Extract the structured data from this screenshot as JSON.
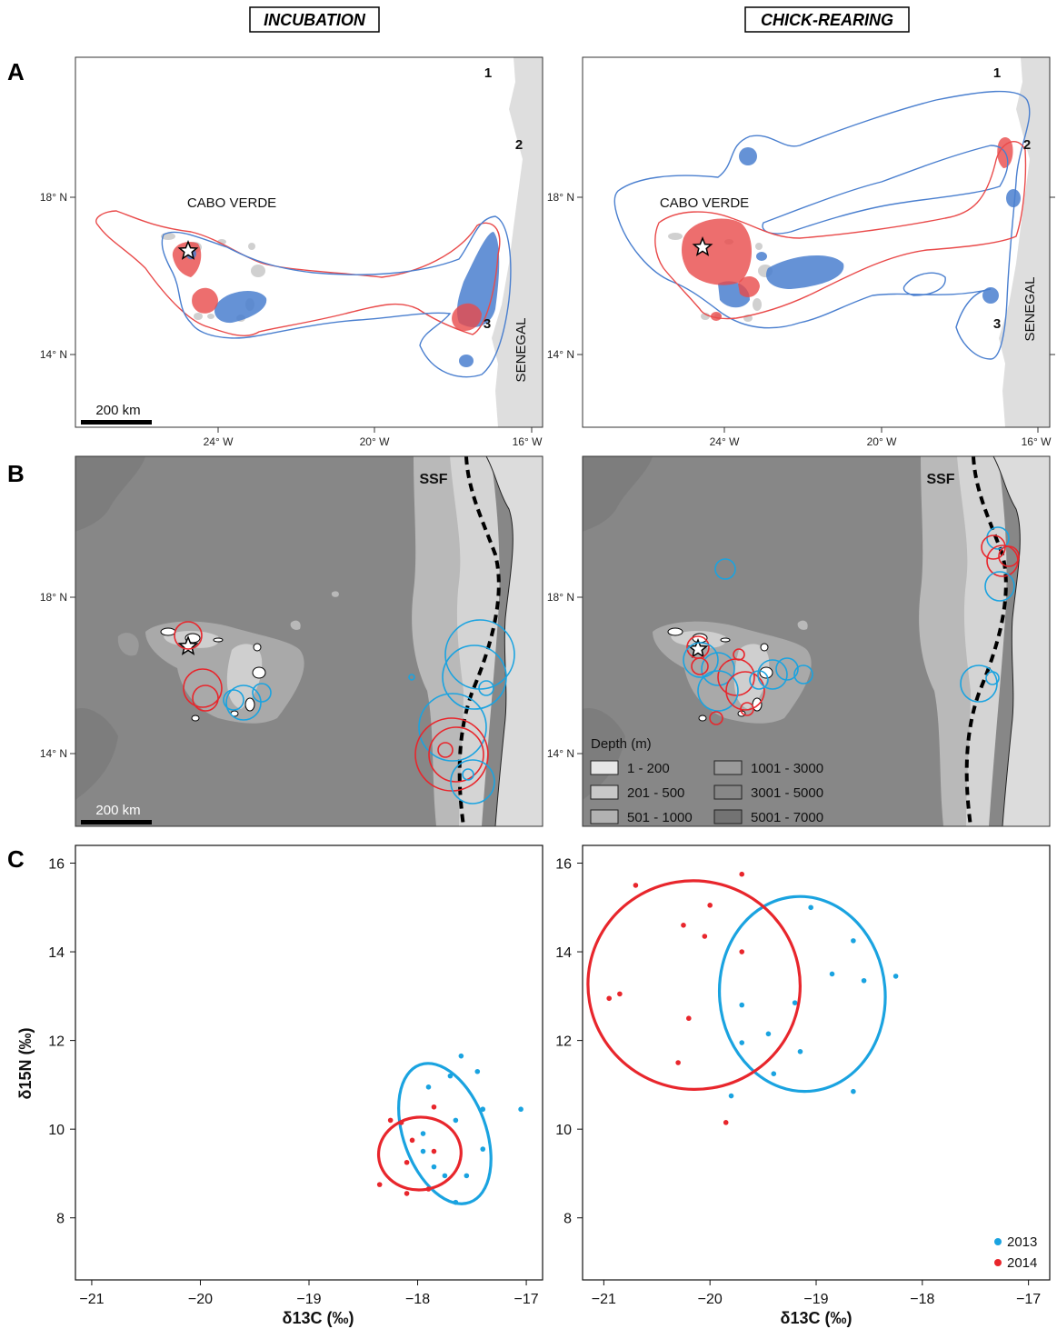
{
  "colors": {
    "y2013": "#1aa3e0",
    "y2014": "#e8262c",
    "ud_2013": "#4a7fcf",
    "ud_2014": "#e94a4a",
    "land": "#dedede",
    "ocean_deep": "#878787",
    "shelf": "#b9b9b9",
    "ssf_line": "#000000"
  },
  "headers": {
    "incubation": "INCUBATION",
    "chick_rearing": "CHICK-REARING"
  },
  "panels": {
    "a": "A",
    "b": "B",
    "c": "C"
  },
  "map_labels": {
    "cabo_verde": "CABO VERDE",
    "senegal": "SENEGAL",
    "ssf": "SSF",
    "scale_bar": "200 km",
    "site_1": "1",
    "site_2": "2",
    "site_3": "3"
  },
  "map_axes": {
    "lat_ticks": [
      "18° N",
      "14° N"
    ],
    "lon_ticks": [
      "24° W",
      "20° W",
      "16° W"
    ]
  },
  "depth_legend": {
    "title": "Depth (m)",
    "items": [
      "1 - 200",
      "201 - 500",
      "501 - 1000",
      "1001 - 3000",
      "3001 - 5000",
      "5001 - 7000"
    ]
  },
  "chart_data": [
    {
      "type": "scatter",
      "panel": "C-incubation",
      "xlabel": "δ13C (‰)",
      "ylabel": "δ15N (‰)",
      "xlim": [
        -21.15,
        -16.85
      ],
      "ylim": [
        6.6,
        16.4
      ],
      "x_ticks": [
        "−21",
        "−20",
        "−19",
        "−18",
        "−17"
      ],
      "y_ticks": [
        "8",
        "10",
        "12",
        "14",
        "16"
      ],
      "series": [
        {
          "name": "2013",
          "points": [
            [
              -17.6,
              11.65
            ],
            [
              -17.7,
              11.2
            ],
            [
              -17.45,
              11.3
            ],
            [
              -17.9,
              10.95
            ],
            [
              -17.4,
              10.45
            ],
            [
              -17.05,
              10.45
            ],
            [
              -17.65,
              10.2
            ],
            [
              -17.95,
              9.9
            ],
            [
              -17.95,
              9.5
            ],
            [
              -17.85,
              9.15
            ],
            [
              -17.4,
              9.55
            ],
            [
              -17.55,
              8.95
            ],
            [
              -17.75,
              8.95
            ],
            [
              -17.65,
              8.35
            ]
          ],
          "ellipse": {
            "cx": -17.75,
            "cy": 9.9,
            "rx": 0.38,
            "ry": 1.65,
            "angle": -20
          }
        },
        {
          "name": "2014",
          "points": [
            [
              -18.25,
              10.2
            ],
            [
              -18.15,
              10.15
            ],
            [
              -17.85,
              10.5
            ],
            [
              -18.05,
              9.75
            ],
            [
              -18.1,
              9.25
            ],
            [
              -17.85,
              9.5
            ],
            [
              -18.35,
              8.75
            ],
            [
              -18.1,
              8.55
            ],
            [
              -17.9,
              8.65
            ]
          ],
          "ellipse": {
            "cx": -17.98,
            "cy": 9.45,
            "rx": 0.38,
            "ry": 0.82,
            "angle": -5
          }
        }
      ]
    },
    {
      "type": "scatter",
      "panel": "C-chick-rearing",
      "xlabel": "δ13C (‰)",
      "ylabel": "",
      "xlim": [
        -21.2,
        -16.8
      ],
      "ylim": [
        6.6,
        16.4
      ],
      "x_ticks": [
        "−21",
        "−20",
        "−19",
        "−18",
        "−17"
      ],
      "y_ticks": [
        "8",
        "10",
        "12",
        "14",
        "16"
      ],
      "legend": [
        "2013",
        "2014"
      ],
      "series": [
        {
          "name": "2013",
          "points": [
            [
              -19.05,
              15.0
            ],
            [
              -18.65,
              14.25
            ],
            [
              -18.85,
              13.5
            ],
            [
              -18.55,
              13.35
            ],
            [
              -18.25,
              13.45
            ],
            [
              -19.2,
              12.85
            ],
            [
              -19.7,
              12.8
            ],
            [
              -19.45,
              12.15
            ],
            [
              -19.7,
              11.95
            ],
            [
              -19.15,
              11.75
            ],
            [
              -19.4,
              11.25
            ],
            [
              -19.8,
              10.75
            ],
            [
              -18.65,
              10.85
            ]
          ],
          "ellipse": {
            "cx": -19.13,
            "cy": 13.05,
            "rx": 0.78,
            "ry": 2.2,
            "angle": -5
          }
        },
        {
          "name": "2014",
          "points": [
            [
              -20.7,
              15.5
            ],
            [
              -19.7,
              15.75
            ],
            [
              -20.0,
              15.05
            ],
            [
              -20.25,
              14.6
            ],
            [
              -20.05,
              14.35
            ],
            [
              -19.7,
              14.0
            ],
            [
              -20.85,
              13.05
            ],
            [
              -20.95,
              12.95
            ],
            [
              -20.2,
              12.5
            ],
            [
              -20.3,
              11.5
            ],
            [
              -19.85,
              10.15
            ]
          ],
          "ellipse": {
            "cx": -20.15,
            "cy": 13.25,
            "rx": 1.0,
            "ry": 2.35,
            "angle": 12
          }
        }
      ]
    }
  ]
}
